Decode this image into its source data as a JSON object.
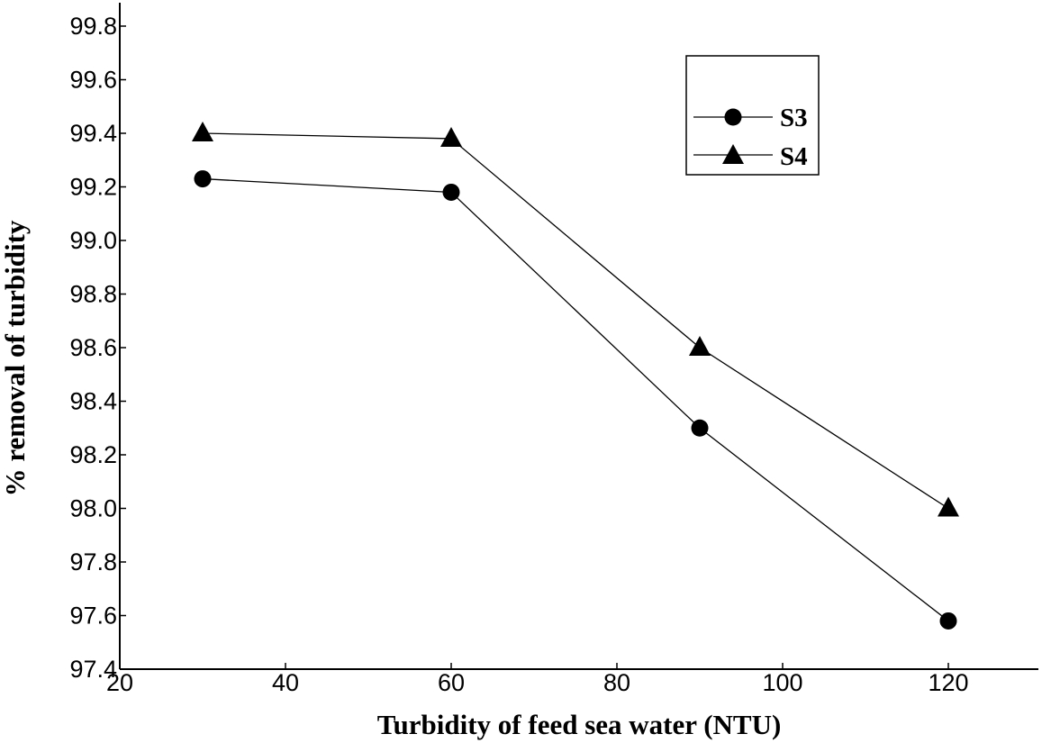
{
  "chart_data": {
    "type": "line",
    "title": "",
    "xlabel": "Turbidity of feed sea water (NTU)",
    "ylabel": "% removal of turbidity",
    "xlim": [
      20,
      130
    ],
    "ylim": [
      97.4,
      99.9
    ],
    "xticks": [
      20,
      40,
      60,
      80,
      100,
      120
    ],
    "xtick_labels": [
      "20",
      "40",
      "60",
      "80",
      "100",
      "120"
    ],
    "yticks": [
      97.4,
      97.6,
      97.8,
      98.0,
      98.2,
      98.4,
      98.6,
      98.8,
      99.0,
      99.2,
      99.4,
      99.6,
      99.8
    ],
    "ytick_labels": [
      "97.4",
      "97.6",
      "97.8",
      "98.0",
      "98.2",
      "98.4",
      "98.6",
      "98.8",
      "99.0",
      "99.2",
      "99.4",
      "99.6",
      "99.8"
    ],
    "grid": false,
    "legend_position": "top-right",
    "x": [
      30,
      60,
      90,
      120
    ],
    "series": [
      {
        "name": "S3",
        "marker": "circle",
        "values": [
          99.23,
          99.18,
          98.3,
          97.58
        ]
      },
      {
        "name": "S4",
        "marker": "triangle",
        "values": [
          99.4,
          99.38,
          98.6,
          98.0
        ]
      }
    ]
  },
  "colors": {
    "line": "#000000",
    "marker": "#000000",
    "background": "#ffffff"
  }
}
